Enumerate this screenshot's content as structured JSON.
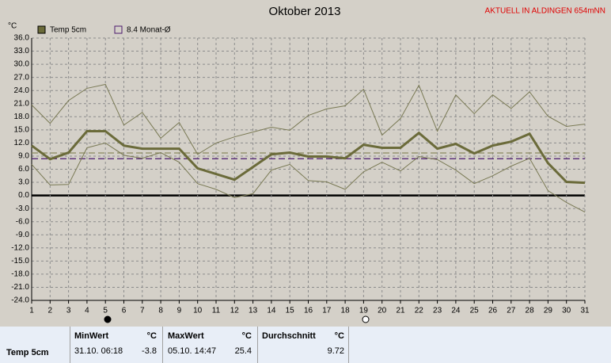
{
  "chart_data": {
    "type": "line",
    "title": "Oktober 2013",
    "subtitle": "AKTUELL IN ALDINGEN 654mNN",
    "y_label": "°C",
    "x": [
      1,
      2,
      3,
      4,
      5,
      6,
      7,
      8,
      9,
      10,
      11,
      12,
      13,
      14,
      15,
      16,
      17,
      18,
      19,
      20,
      21,
      22,
      23,
      24,
      25,
      26,
      27,
      28,
      29,
      30,
      31
    ],
    "xlim": [
      1,
      31
    ],
    "xticks": [
      1,
      2,
      3,
      4,
      5,
      6,
      7,
      8,
      9,
      10,
      11,
      12,
      13,
      14,
      15,
      16,
      17,
      18,
      19,
      20,
      21,
      22,
      23,
      24,
      25,
      26,
      27,
      28,
      29,
      30,
      31
    ],
    "ylim": [
      -24,
      36
    ],
    "yticks": [
      {
        "value": 36,
        "label": "36.0"
      },
      {
        "value": 33,
        "label": "33.0"
      },
      {
        "value": 30,
        "label": "30.0"
      },
      {
        "value": 27,
        "label": "27.0"
      },
      {
        "value": 24,
        "label": "24.0"
      },
      {
        "value": 21,
        "label": "21.0"
      },
      {
        "value": 18,
        "label": "18.0"
      },
      {
        "value": 15,
        "label": "15.0"
      },
      {
        "value": 12,
        "label": "12.0"
      },
      {
        "value": 9,
        "label": "9.0"
      },
      {
        "value": 6,
        "label": "6.0"
      },
      {
        "value": 3,
        "label": "3.0"
      },
      {
        "value": 0,
        "label": "0.0"
      },
      {
        "value": -3,
        "label": "-3.0"
      },
      {
        "value": -6,
        "label": "-6.0"
      },
      {
        "value": -9,
        "label": "-9.0"
      },
      {
        "value": -12,
        "label": "-12.0"
      },
      {
        "value": -15,
        "label": "-15.0"
      },
      {
        "value": -18,
        "label": "-18.0"
      },
      {
        "value": -21,
        "label": "-21.0"
      },
      {
        "value": -24,
        "label": "-24.0"
      }
    ],
    "grid": true,
    "series": [
      {
        "name": "Temp 5cm",
        "color": "#6b6b3a",
        "width": 3,
        "values": [
          11.4,
          8.3,
          9.8,
          14.7,
          14.7,
          11.4,
          10.7,
          10.7,
          10.7,
          6.2,
          4.9,
          3.6,
          6.5,
          9.4,
          9.8,
          8.9,
          8.9,
          8.5,
          11.6,
          10.9,
          10.9,
          14.3,
          10.7,
          11.8,
          9.6,
          11.4,
          12.3,
          14.1,
          7.4,
          3.1,
          2.9
        ]
      },
      {
        "color": "#7a7a55",
        "width": 1,
        "values": [
          20.7,
          16.5,
          21.7,
          24.5,
          25.4,
          16.1,
          19.0,
          13.1,
          16.7,
          9.4,
          12.0,
          13.4,
          14.5,
          15.6,
          14.9,
          18.3,
          19.8,
          20.5,
          24.3,
          13.8,
          17.6,
          25.2,
          14.7,
          23.0,
          18.7,
          23.0,
          19.9,
          23.7,
          18.1,
          15.8,
          16.3
        ]
      },
      {
        "color": "#7a7a55",
        "width": 1,
        "values": [
          7.1,
          2.4,
          2.5,
          10.9,
          12.0,
          9.2,
          8.5,
          9.8,
          7.6,
          2.7,
          1.4,
          -0.5,
          0.4,
          5.8,
          7.1,
          3.4,
          3.1,
          1.4,
          5.4,
          7.6,
          5.6,
          8.9,
          8.2,
          5.8,
          2.7,
          4.5,
          6.7,
          8.5,
          1.1,
          -1.6,
          -3.8
        ]
      }
    ],
    "reference_lines": [
      {
        "label": "8.4 Monat-Ø",
        "value": 8.4,
        "color": "#4b1a6e"
      },
      {
        "value": 9.72,
        "color": "#8a8a60"
      }
    ]
  },
  "table": {
    "header": [
      "MinWert",
      "°C",
      "MaxWert",
      "°C",
      "Durchschnitt",
      "°C"
    ],
    "rows": [
      [
        "Temp 5cm",
        "31.10. 06:18",
        "-3.8",
        "05.10. 14:47",
        "25.4",
        "9.72"
      ]
    ]
  }
}
